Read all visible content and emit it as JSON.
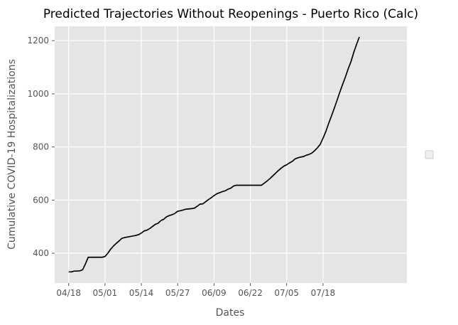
{
  "chart_data": {
    "type": "line",
    "title": "Predicted Trajectories Without Reopenings - Puerto Rico (Calc)",
    "xlabel": "Dates",
    "ylabel": "Cumulative COVID-19 Hospitalizations",
    "x_tick_labels": [
      "04/18",
      "05/01",
      "05/14",
      "05/27",
      "06/09",
      "06/22",
      "07/05",
      "07/18"
    ],
    "y_tick_labels": [
      "400",
      "600",
      "800",
      "1000",
      "1200"
    ],
    "y_ticks": [
      400,
      600,
      800,
      1000,
      1200
    ],
    "ylim": [
      288,
      1254
    ],
    "xlim": [
      "2020-04-13",
      "2020-08-17"
    ],
    "grid": true,
    "legend": "right (empty legend box)",
    "colors": {
      "background": "#e5e5e5",
      "grid": "#ffffff",
      "line": "#000000"
    },
    "series": [
      {
        "values": [
          [
            "2020-04-18",
            330
          ],
          [
            "2020-04-19",
            330
          ],
          [
            "2020-04-20",
            333
          ],
          [
            "2020-04-21",
            333
          ],
          [
            "2020-04-22",
            334
          ],
          [
            "2020-04-23",
            338
          ],
          [
            "2020-04-24",
            360
          ],
          [
            "2020-04-25",
            385
          ],
          [
            "2020-04-26",
            385
          ],
          [
            "2020-04-27",
            385
          ],
          [
            "2020-04-28",
            385
          ],
          [
            "2020-04-29",
            385
          ],
          [
            "2020-04-30",
            385
          ],
          [
            "2020-05-01",
            388
          ],
          [
            "2020-05-02",
            400
          ],
          [
            "2020-05-03",
            415
          ],
          [
            "2020-05-04",
            427
          ],
          [
            "2020-05-05",
            437
          ],
          [
            "2020-05-06",
            446
          ],
          [
            "2020-05-07",
            456
          ],
          [
            "2020-05-08",
            459
          ],
          [
            "2020-05-09",
            461
          ],
          [
            "2020-05-10",
            463
          ],
          [
            "2020-05-11",
            465
          ],
          [
            "2020-05-12",
            467
          ],
          [
            "2020-05-13",
            470
          ],
          [
            "2020-05-14",
            476
          ],
          [
            "2020-05-15",
            484
          ],
          [
            "2020-05-16",
            487
          ],
          [
            "2020-05-17",
            493
          ],
          [
            "2020-05-18",
            501
          ],
          [
            "2020-05-19",
            509
          ],
          [
            "2020-05-20",
            513
          ],
          [
            "2020-05-21",
            523
          ],
          [
            "2020-05-22",
            528
          ],
          [
            "2020-05-23",
            537
          ],
          [
            "2020-05-24",
            542
          ],
          [
            "2020-05-25",
            545
          ],
          [
            "2020-05-26",
            550
          ],
          [
            "2020-05-27",
            558
          ],
          [
            "2020-05-28",
            560
          ],
          [
            "2020-05-29",
            563
          ],
          [
            "2020-05-30",
            566
          ],
          [
            "2020-05-31",
            567
          ],
          [
            "2020-06-01",
            568
          ],
          [
            "2020-06-02",
            570
          ],
          [
            "2020-06-03",
            577
          ],
          [
            "2020-06-04",
            585
          ],
          [
            "2020-06-05",
            586
          ],
          [
            "2020-06-06",
            594
          ],
          [
            "2020-06-07",
            602
          ],
          [
            "2020-06-08",
            609
          ],
          [
            "2020-06-09",
            617
          ],
          [
            "2020-06-10",
            624
          ],
          [
            "2020-06-11",
            628
          ],
          [
            "2020-06-12",
            632
          ],
          [
            "2020-06-13",
            635
          ],
          [
            "2020-06-14",
            641
          ],
          [
            "2020-06-15",
            645
          ],
          [
            "2020-06-16",
            653
          ],
          [
            "2020-06-17",
            656
          ],
          [
            "2020-06-18",
            656
          ],
          [
            "2020-06-20",
            656
          ],
          [
            "2020-06-22",
            656
          ],
          [
            "2020-06-24",
            656
          ],
          [
            "2020-06-26",
            656
          ],
          [
            "2020-06-27",
            664
          ],
          [
            "2020-06-28",
            672
          ],
          [
            "2020-06-29",
            681
          ],
          [
            "2020-06-30",
            691
          ],
          [
            "2020-07-01",
            701
          ],
          [
            "2020-07-02",
            711
          ],
          [
            "2020-07-03",
            720
          ],
          [
            "2020-07-04",
            728
          ],
          [
            "2020-07-05",
            733
          ],
          [
            "2020-07-06",
            740
          ],
          [
            "2020-07-07",
            746
          ],
          [
            "2020-07-08",
            755
          ],
          [
            "2020-07-09",
            759
          ],
          [
            "2020-07-10",
            762
          ],
          [
            "2020-07-11",
            764
          ],
          [
            "2020-07-12",
            769
          ],
          [
            "2020-07-13",
            772
          ],
          [
            "2020-07-14",
            777
          ],
          [
            "2020-07-15",
            786
          ],
          [
            "2020-07-16",
            797
          ],
          [
            "2020-07-17",
            810
          ],
          [
            "2020-07-18",
            833
          ],
          [
            "2020-07-19",
            858
          ],
          [
            "2020-07-20",
            888
          ],
          [
            "2020-07-21",
            916
          ],
          [
            "2020-07-22",
            945
          ],
          [
            "2020-07-23",
            975
          ],
          [
            "2020-07-24",
            1006
          ],
          [
            "2020-07-25",
            1035
          ],
          [
            "2020-07-26",
            1063
          ],
          [
            "2020-07-27",
            1094
          ],
          [
            "2020-07-28",
            1121
          ],
          [
            "2020-07-29",
            1156
          ],
          [
            "2020-07-30",
            1186
          ],
          [
            "2020-07-31",
            1214
          ]
        ]
      }
    ]
  }
}
